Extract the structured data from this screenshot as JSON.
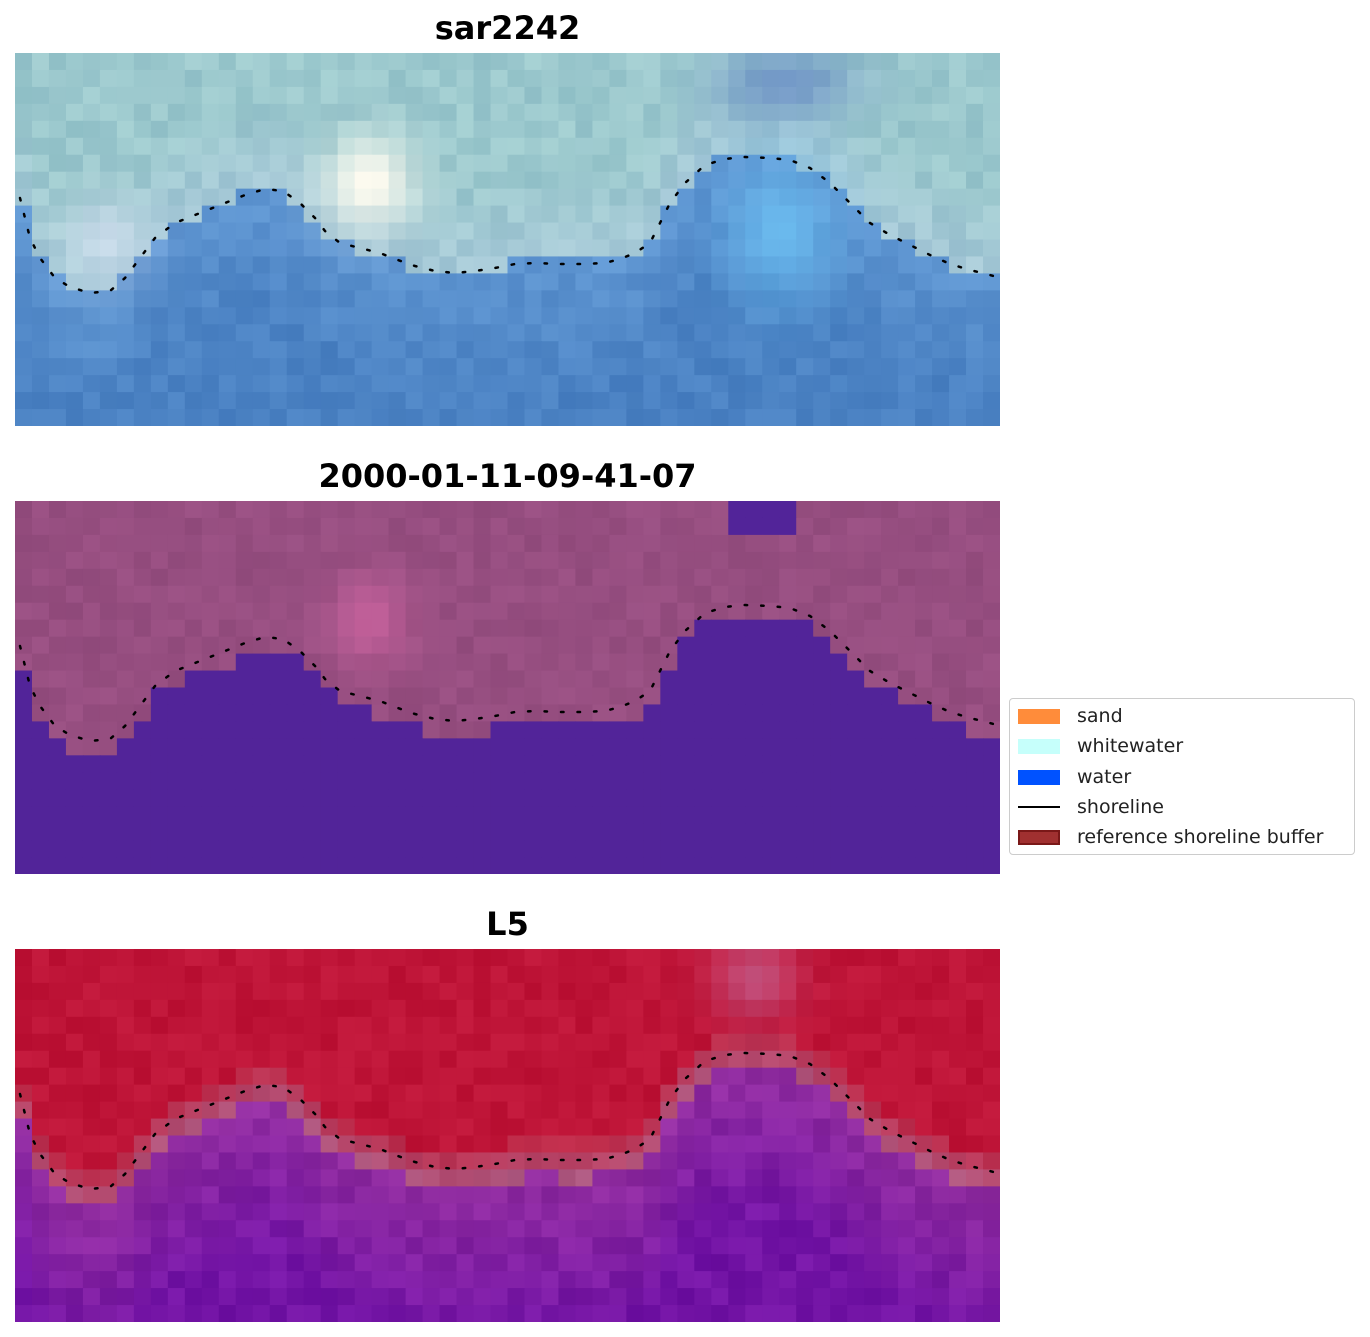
{
  "panels": [
    {
      "title": "sar2242",
      "style": "sar"
    },
    {
      "title": "2000-01-11-09-41-07",
      "style": "class"
    },
    {
      "title": "L5",
      "style": "l5"
    }
  ],
  "legend": {
    "items": [
      {
        "label": "sand",
        "color": "#ff8c3a",
        "kind": "patch"
      },
      {
        "label": "whitewater",
        "color": "#c6fffb",
        "kind": "patch"
      },
      {
        "label": "water",
        "color": "#0052ff",
        "kind": "patch"
      },
      {
        "label": "shoreline",
        "color": "#000000",
        "kind": "line"
      },
      {
        "label": "reference shoreline buffer",
        "color": "#a03030",
        "kind": "patch"
      }
    ]
  }
}
